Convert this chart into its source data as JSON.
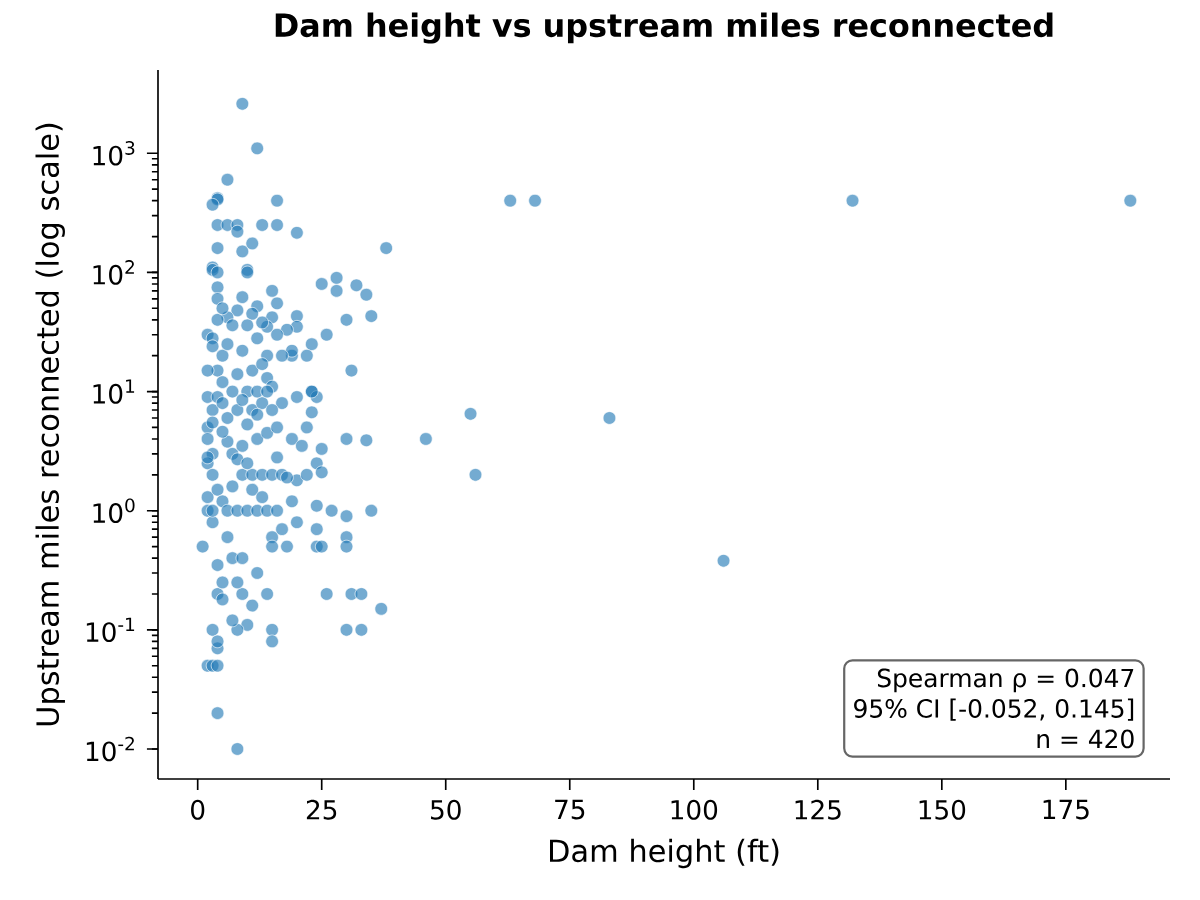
{
  "chart_data": {
    "type": "scatter",
    "title": "Dam height vs upstream miles reconnected",
    "xlabel": "Dam height (ft)",
    "ylabel": "Upstream miles reconnected (log scale)",
    "annotations": [
      "Spearman ρ = 0.047",
      "95% CI [-0.052, 0.145]",
      "n = 420"
    ],
    "log": "y",
    "marker": "circle",
    "xlim": [
      -8,
      196
    ],
    "ylim": [
      0.0056,
      5000
    ],
    "xticks": [
      0,
      25,
      50,
      75,
      100,
      125,
      150,
      175
    ],
    "yticks": [
      {
        "value": 0.01,
        "label": "10$^{-2}$"
      },
      {
        "value": 0.1,
        "label": "10$^{-1}$"
      },
      {
        "value": 1,
        "label": "10$^{0}$"
      },
      {
        "value": 10,
        "label": "10$^{1}$"
      },
      {
        "value": 100,
        "label": "10$^{2}$"
      },
      {
        "value": 1000,
        "label": "10$^{3}$"
      }
    ],
    "series": [
      {
        "color": "#1f77b4",
        "x": [
          9,
          12,
          6,
          4,
          4,
          3,
          16,
          63,
          68,
          132,
          188,
          4,
          6,
          8,
          13,
          16,
          8,
          11,
          20,
          4,
          38,
          9,
          3,
          3,
          4,
          10,
          10,
          28,
          25,
          32,
          28,
          34,
          4,
          9,
          4,
          15,
          16,
          12,
          35,
          20,
          26,
          30,
          23,
          19,
          14,
          2,
          31,
          23,
          24,
          23,
          46,
          55,
          83,
          56,
          106,
          30,
          34,
          25,
          24,
          25,
          35,
          27,
          24,
          30,
          24,
          30,
          30,
          24,
          25,
          26,
          31,
          33,
          37,
          30,
          33,
          15,
          15,
          10,
          14,
          11,
          8,
          9,
          7,
          4,
          5,
          3,
          4,
          4,
          2,
          3,
          4,
          4,
          8,
          1,
          2,
          2,
          3,
          4,
          5,
          8,
          6,
          7,
          12,
          9,
          18,
          15,
          15,
          17,
          20,
          19,
          20,
          22,
          19,
          21,
          22,
          20,
          17,
          14,
          15,
          23,
          19,
          17,
          20,
          22,
          18,
          16,
          15,
          11,
          8,
          6,
          3,
          3,
          5,
          4,
          2,
          2,
          3,
          2,
          2,
          3,
          2,
          3,
          4,
          5,
          6,
          3,
          8,
          10,
          12,
          14,
          16,
          9,
          11,
          13,
          15,
          17,
          7,
          9,
          12,
          14,
          16,
          6,
          8,
          11,
          13,
          15,
          4,
          7,
          10,
          12,
          14,
          5,
          8,
          11,
          13,
          6,
          9,
          12,
          14,
          10,
          7,
          4,
          13,
          5,
          2,
          6,
          10,
          12,
          5,
          3,
          8,
          10,
          11,
          13,
          7,
          18,
          16,
          9,
          5
        ],
        "values": [
          2600,
          1100,
          600,
          420,
          410,
          370,
          400,
          400,
          400,
          400,
          400,
          250,
          250,
          250,
          250,
          250,
          220,
          175,
          215,
          160,
          160,
          150,
          110,
          105,
          100,
          105,
          100,
          90,
          80,
          78,
          70,
          65,
          75,
          62,
          60,
          70,
          55,
          52,
          43,
          43,
          30,
          40,
          25,
          20,
          20,
          30,
          15,
          10,
          9,
          6.7,
          4,
          6.5,
          6,
          2,
          0.38,
          4,
          3.9,
          3.3,
          2.5,
          2.1,
          1,
          1,
          1.1,
          0.9,
          0.7,
          0.6,
          0.5,
          0.5,
          0.5,
          0.2,
          0.2,
          0.2,
          0.15,
          0.1,
          0.1,
          0.1,
          0.08,
          0.11,
          0.2,
          0.16,
          0.1,
          0.2,
          0.12,
          0.2,
          0.18,
          0.1,
          0.07,
          0.08,
          0.05,
          0.05,
          0.05,
          0.02,
          0.01,
          0.5,
          1,
          1.3,
          0.8,
          0.35,
          0.25,
          0.25,
          0.6,
          0.4,
          0.3,
          0.4,
          0.5,
          0.6,
          0.5,
          0.7,
          0.8,
          1.2,
          1.8,
          2,
          4,
          3.5,
          5,
          9,
          8,
          13,
          11,
          10,
          22,
          20,
          35,
          20,
          33,
          30,
          42,
          45,
          48,
          42,
          28,
          24,
          20,
          15,
          15,
          9,
          7,
          5,
          4,
          3,
          2.5,
          2,
          1.5,
          1.2,
          1,
          1,
          1,
          1,
          1,
          1,
          1,
          2,
          2,
          2,
          2,
          2,
          3,
          3.5,
          4,
          4.5,
          5,
          6,
          7,
          7,
          8,
          7,
          9,
          10,
          10,
          10,
          10,
          12,
          14,
          15,
          17,
          25,
          22,
          28,
          35,
          36,
          36,
          40,
          38,
          50,
          2.8,
          3.8,
          5.3,
          6.4,
          4.6,
          5.5,
          2.7,
          2.5,
          1.5,
          1.3,
          1.6,
          1.9,
          2.8,
          8.5,
          8
        ]
      }
    ]
  }
}
